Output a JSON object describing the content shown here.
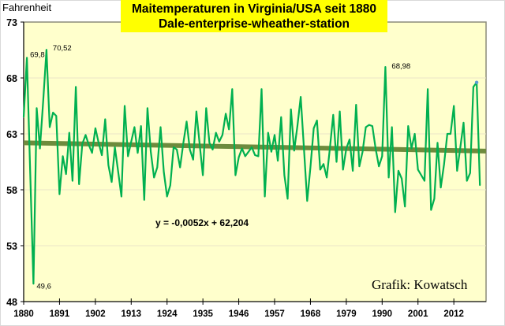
{
  "chart_data": {
    "type": "line",
    "title": "Maitemperaturen in Virginia/USA seit 1880",
    "subtitle": "Dale-enterprise-wheather-station",
    "ylabel": "Fahrenheit",
    "xlabel": "",
    "ylim": [
      48,
      73
    ],
    "xlim": [
      1880,
      2021
    ],
    "yticks": [
      48,
      53,
      58,
      63,
      68,
      73
    ],
    "xticks": [
      1880,
      1891,
      1902,
      1913,
      1924,
      1935,
      1946,
      1957,
      1968,
      1979,
      1990,
      2001,
      2012
    ],
    "grid": "horizontal",
    "colors": {
      "series": "#00b050",
      "trend": "#6e8b3d",
      "plot_bg": "#ffffcc",
      "title_bg": "#ffff00",
      "last_marker": "#5b9bd5"
    },
    "series": [
      {
        "name": "Mai-Temperatur",
        "start_year": 1880,
        "values": [
          64.5,
          69.8,
          59.5,
          49.6,
          65.3,
          61.7,
          66.0,
          70.52,
          63.6,
          64.9,
          64.6,
          57.6,
          61.0,
          59.4,
          63.1,
          58.8,
          67.2,
          58.5,
          62.1,
          62.9,
          62.0,
          61.3,
          63.5,
          62.2,
          61.1,
          64.3,
          60.2,
          58.7,
          61.8,
          59.6,
          57.4,
          65.5,
          61.0,
          62.3,
          63.6,
          61.3,
          63.7,
          57.1,
          65.3,
          61.4,
          59.1,
          60.0,
          63.6,
          59.6,
          57.4,
          58.4,
          61.8,
          61.6,
          60.0,
          62.2,
          64.1,
          61.6,
          60.7,
          65.0,
          62.1,
          59.3,
          65.3,
          62.2,
          61.6,
          63.1,
          62.3,
          62.9,
          64.8,
          63.4,
          67.0,
          59.3,
          60.9,
          61.7,
          61.0,
          61.4,
          61.8,
          61.1,
          61.0,
          67.0,
          57.4,
          63.1,
          61.4,
          62.9,
          60.6,
          64.5,
          59.3,
          57.2,
          65.2,
          61.5,
          63.7,
          66.3,
          61.7,
          57.0,
          60.0,
          63.5,
          64.2,
          59.8,
          60.3,
          59.1,
          61.8,
          64.7,
          60.5,
          65.0,
          59.8,
          61.7,
          62.5,
          59.7,
          65.6,
          60.1,
          61.4,
          63.6,
          63.8,
          63.7,
          61.7,
          60.1,
          61.0,
          68.98,
          59.1,
          63.6,
          56.0,
          59.7,
          59.0,
          56.5,
          63.7,
          61.7,
          63.0,
          59.8,
          59.3,
          58.8,
          67.0,
          56.2,
          57.2,
          62.2,
          58.2,
          60.3,
          63.0,
          63.0,
          65.5,
          59.7,
          61.8,
          64.0,
          58.8,
          59.5,
          67.2,
          67.6,
          58.4
        ]
      }
    ],
    "trendline": {
      "slope": -0.0052,
      "intercept": 62.204,
      "label": "y = -0,0052x + 62,204"
    },
    "annotations": [
      {
        "year": 1881,
        "value": 69.8,
        "text": "69,8"
      },
      {
        "year": 1887,
        "value": 70.52,
        "text": "70,52"
      },
      {
        "year": 1883,
        "value": 49.6,
        "text": "49,6"
      },
      {
        "year": 1991,
        "value": 68.98,
        "text": "68,98"
      }
    ],
    "credit": "Grafik: Kowatsch",
    "legend": "none"
  }
}
